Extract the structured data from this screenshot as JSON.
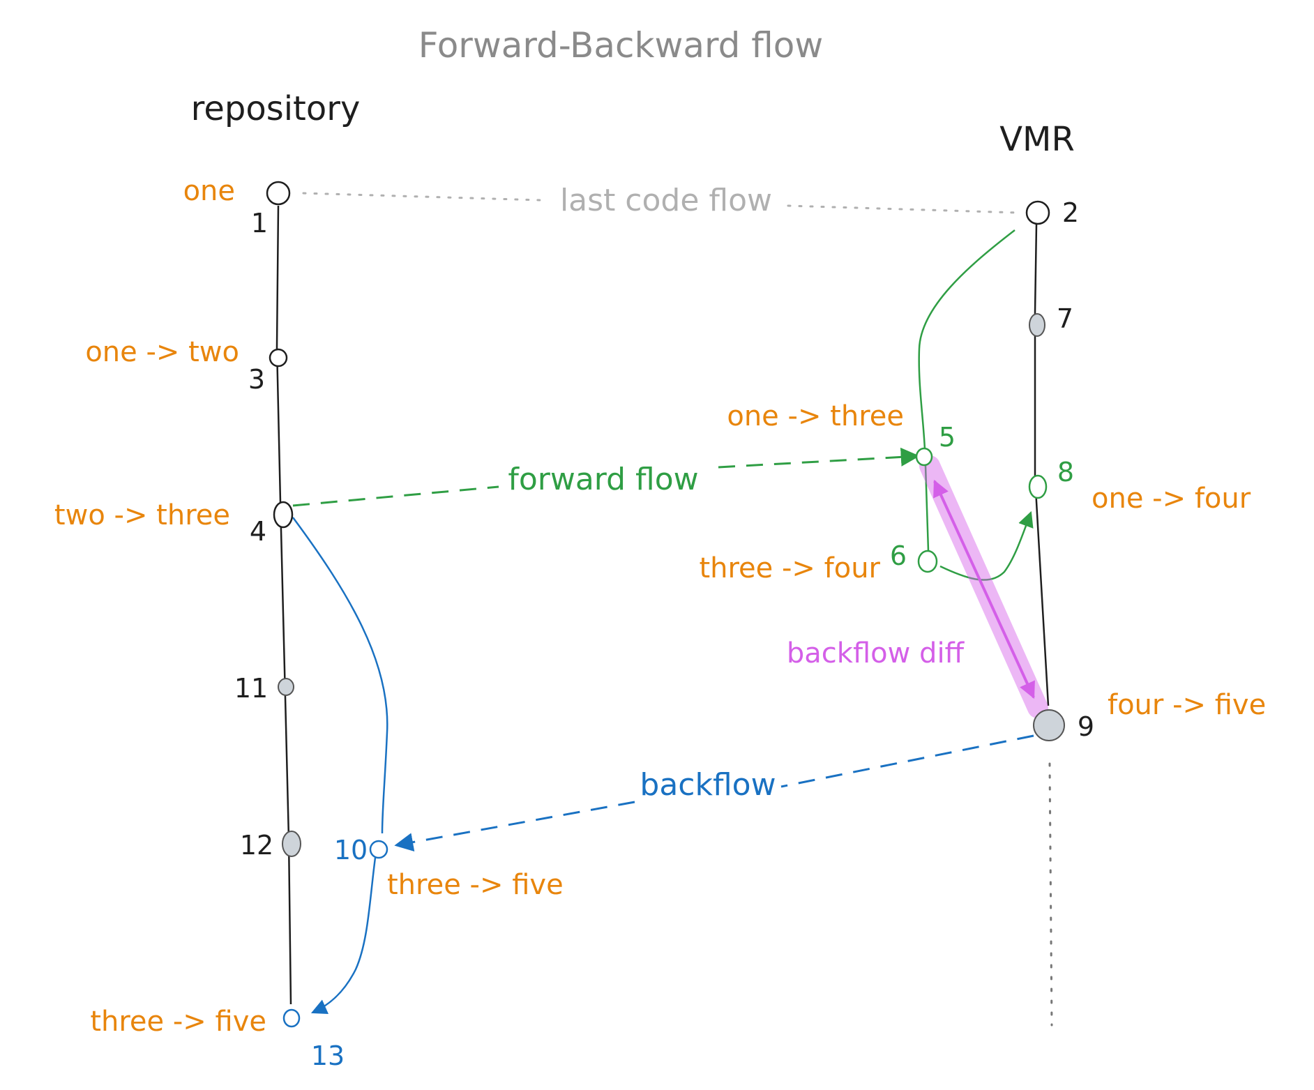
{
  "title": "Forward-Backward flow",
  "columns": {
    "repository": "repository",
    "vmr": "VMR"
  },
  "edges": {
    "last_code_flow": "last code flow",
    "forward_flow": "forward flow",
    "backflow": "backflow",
    "backflow_diff": "backflow diff"
  },
  "nodes": [
    {
      "id": "1",
      "label": "one"
    },
    {
      "id": "2",
      "label": ""
    },
    {
      "id": "3",
      "label": "one -> two"
    },
    {
      "id": "4",
      "label": "two -> three"
    },
    {
      "id": "5",
      "label": "one -> three"
    },
    {
      "id": "6",
      "label": "three -> four"
    },
    {
      "id": "7",
      "label": ""
    },
    {
      "id": "8",
      "label": "one -> four"
    },
    {
      "id": "9",
      "label": "four -> five"
    },
    {
      "id": "10",
      "label": "three -> five"
    },
    {
      "id": "11",
      "label": ""
    },
    {
      "id": "12",
      "label": ""
    },
    {
      "id": "13",
      "label": "three -> five"
    }
  ],
  "colors": {
    "label": "#e8850c",
    "forward": "#2f9e44",
    "backflow": "#1971c2",
    "diff": "#d45fe8",
    "last_code_flow": "#b0b0b0"
  }
}
